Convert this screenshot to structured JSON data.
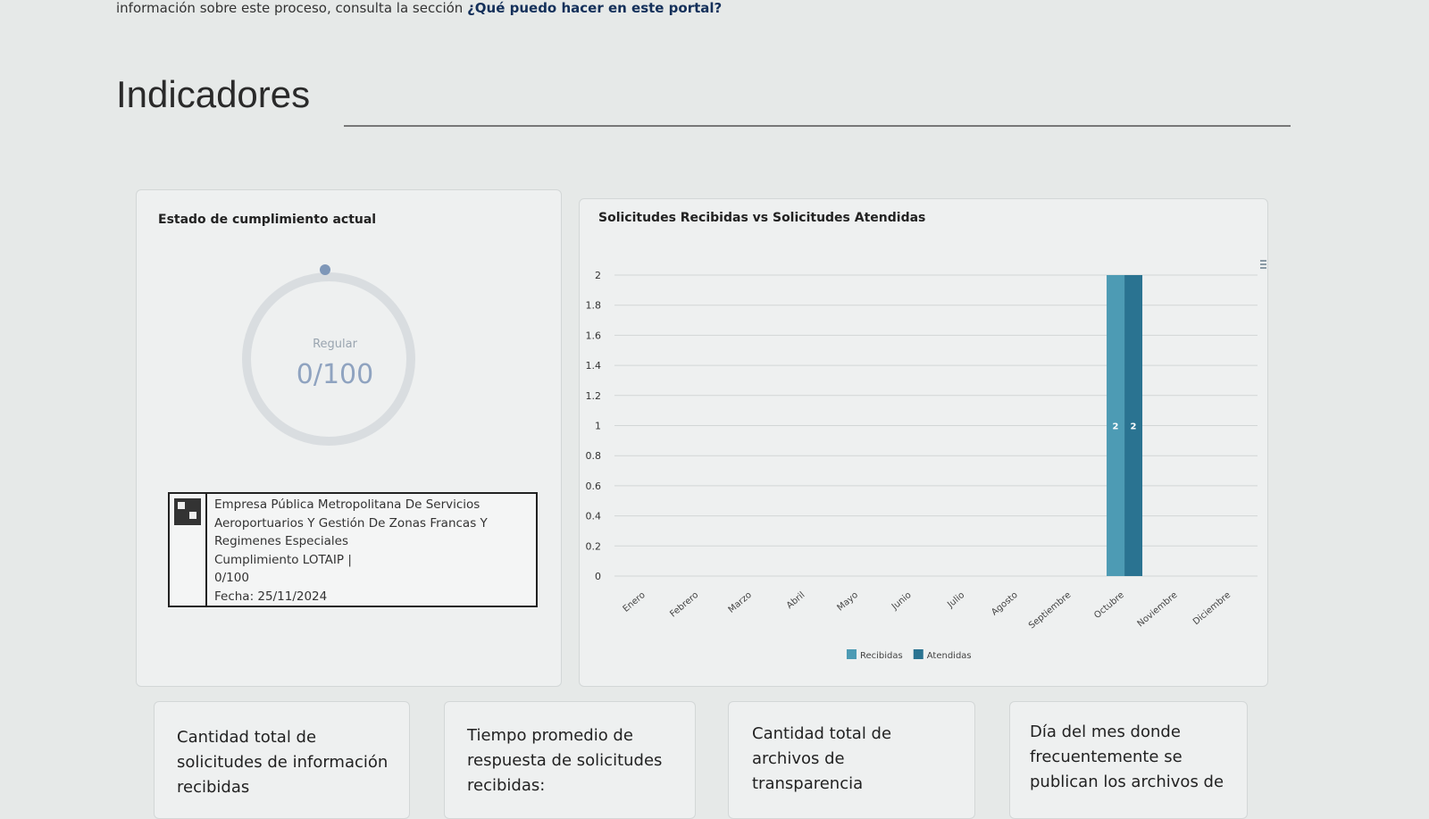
{
  "intro": {
    "text": "información sobre este proceso, consulta la sección",
    "link": "¿Qué puedo hacer en este portal?"
  },
  "header": {
    "title": "Indicadores"
  },
  "compliance": {
    "title": "Estado de cumplimiento actual",
    "status": "Regular",
    "score": "0/100",
    "badge": {
      "lines": [
        "Empresa Pública Metropolitana De Servicios",
        "Aeroportuarios Y Gestión De Zonas Francas Y",
        "Regimenes Especiales",
        "Cumplimiento LOTAIP |",
        "0/100",
        "Fecha: 25/11/2024"
      ]
    }
  },
  "chart_data": {
    "type": "bar",
    "title": "Solicitudes Recibidas vs Solicitudes Atendidas",
    "categories": [
      "Enero",
      "Febrero",
      "Marzo",
      "Abril",
      "Mayo",
      "Junio",
      "Julio",
      "Agosto",
      "Septiembre",
      "Octubre",
      "Noviembre",
      "Diciembre"
    ],
    "series": [
      {
        "name": "Recibidas",
        "color": "#4d9bb4",
        "values": [
          0,
          0,
          0,
          0,
          0,
          0,
          0,
          0,
          0,
          2,
          0,
          0
        ]
      },
      {
        "name": "Atendidas",
        "color": "#2a7391",
        "values": [
          0,
          0,
          0,
          0,
          0,
          0,
          0,
          0,
          0,
          2,
          0,
          0
        ]
      }
    ],
    "ylim": [
      0,
      2
    ],
    "yticks": [
      0,
      0.2,
      0.4,
      0.6,
      0.8,
      1,
      1.2,
      1.4,
      1.6,
      1.8,
      2
    ],
    "grid": true,
    "legend": "bottom"
  },
  "stats": [
    {
      "title": "Cantidad total de solicitudes de información recibidas"
    },
    {
      "title": "Tiempo promedio de respuesta de solicitudes recibidas:"
    },
    {
      "title": "Cantidad total de archivos de transparencia"
    },
    {
      "title": "Día del mes donde frecuentemente se publican los archivos de"
    }
  ]
}
